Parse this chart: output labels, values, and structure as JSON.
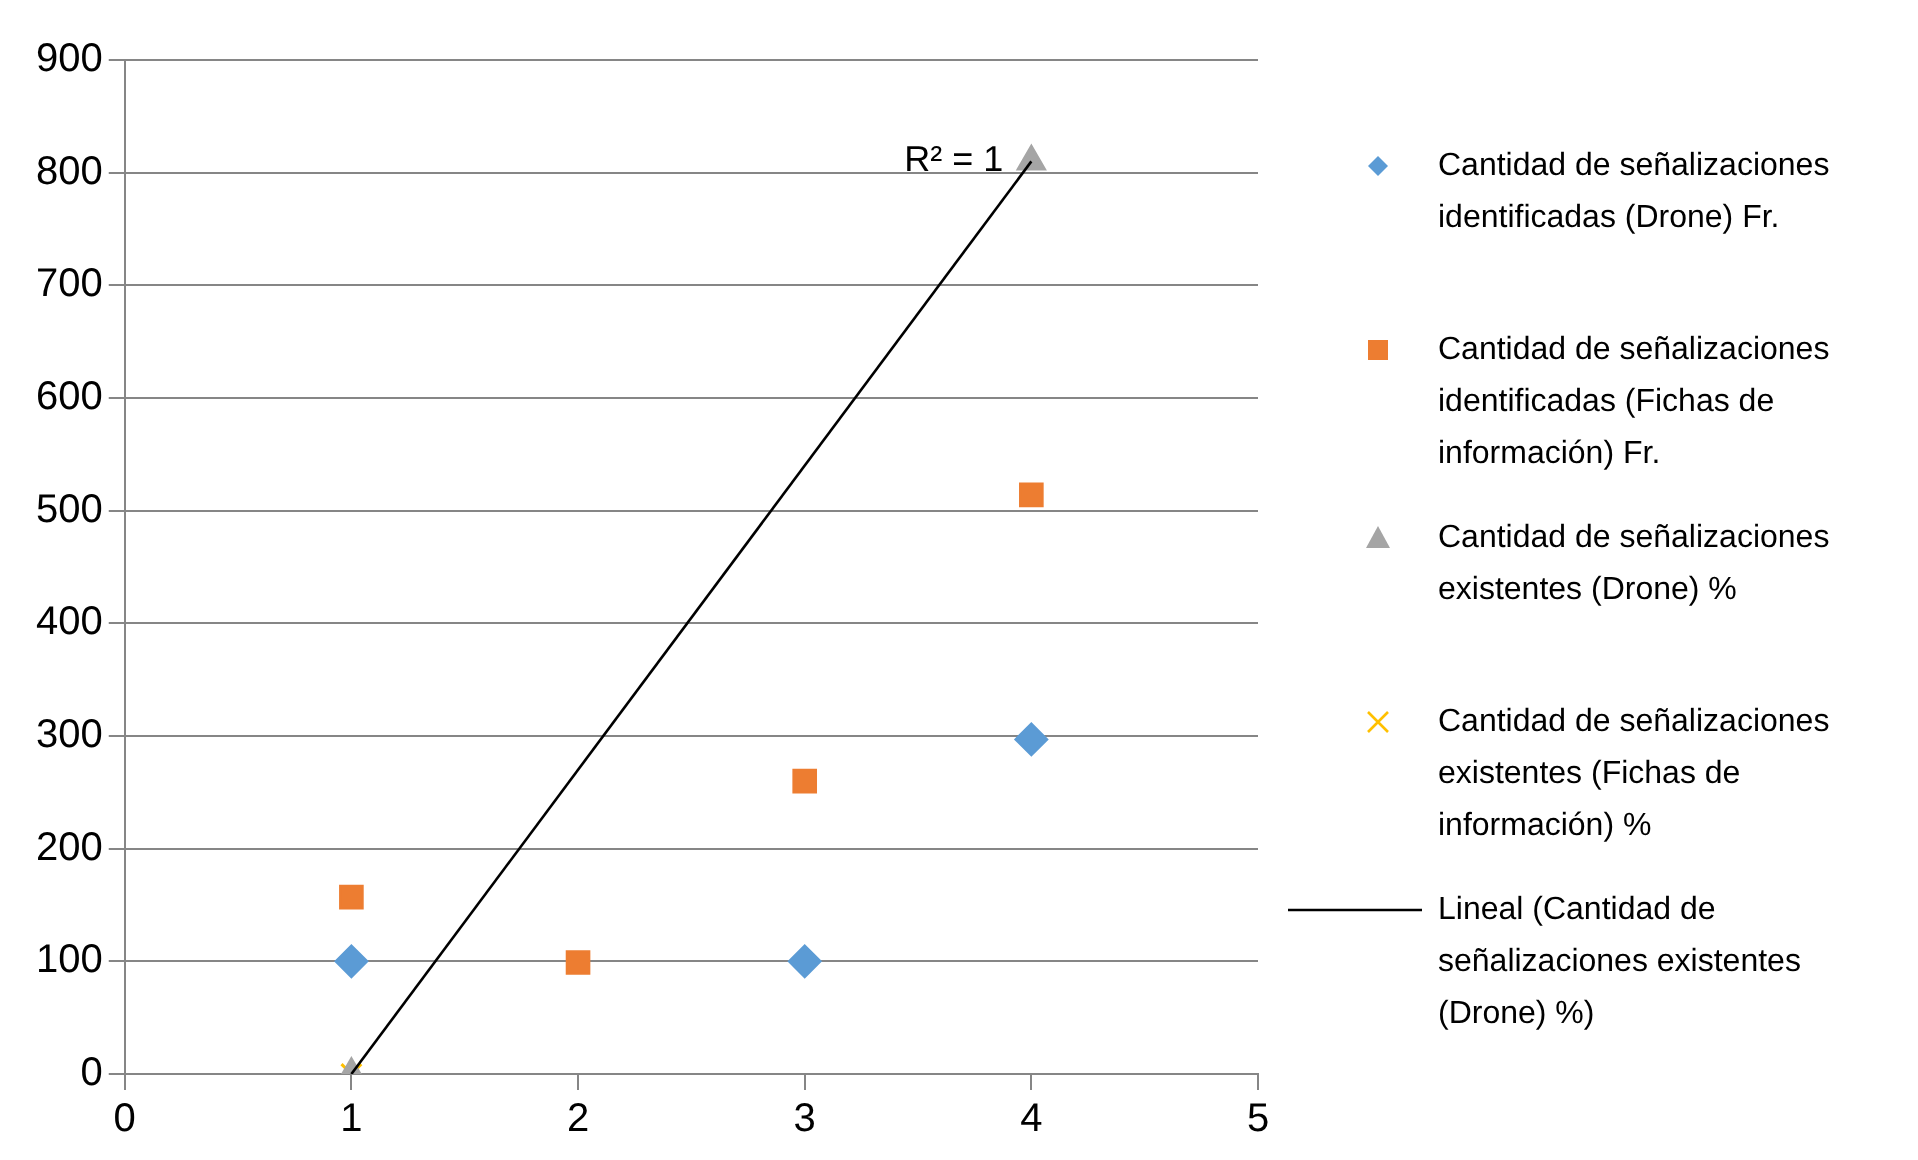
{
  "chart_data": {
    "type": "scatter",
    "xlim": [
      0,
      5
    ],
    "xticks": [
      0,
      1,
      2,
      3,
      4,
      5
    ],
    "ylim": [
      0,
      900
    ],
    "yticks": [
      0,
      100,
      200,
      300,
      400,
      500,
      600,
      700,
      800,
      900
    ],
    "grid": "y",
    "legend": "right",
    "series": [
      {
        "name": "Cantidad de señalizaciones identificadas (Drone) Fr.",
        "color": "#5b9bd5",
        "marker": "diamond",
        "x": [
          1,
          3,
          4
        ],
        "values": [
          100,
          100,
          297
        ]
      },
      {
        "name": "Cantidad de señalizaciones identificadas (Fichas de información) Fr.",
        "color": "#ed7d31",
        "marker": "square",
        "x": [
          1,
          2,
          3,
          4
        ],
        "values": [
          157,
          99,
          260,
          514
        ]
      },
      {
        "name": "Cantidad de señalizaciones existentes (Drone) %",
        "color": "#a5a5a5",
        "marker": "triangle",
        "x": [
          1,
          4
        ],
        "values": [
          0,
          810
        ]
      },
      {
        "name": "Cantidad de señalizaciones existentes (Fichas de información) %",
        "color": "#ffc000",
        "marker": "cross",
        "x": [
          1
        ],
        "values": [
          0
        ]
      },
      {
        "name": "Lineal (Cantidad de señalizaciones existentes (Drone) %)",
        "type": "line",
        "color": "#000000",
        "marker": "none",
        "x": [
          1,
          4
        ],
        "values": [
          0,
          810
        ]
      }
    ],
    "annotations": [
      {
        "text": "R² = 1",
        "x": 4,
        "y": 810
      }
    ]
  }
}
